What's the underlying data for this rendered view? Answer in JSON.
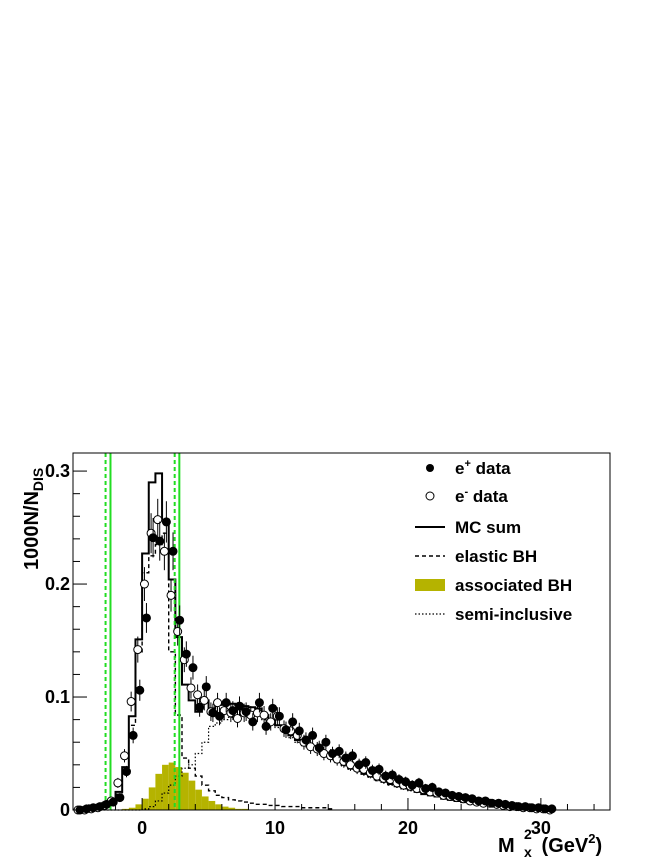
{
  "chart_data": {
    "type": "histogram",
    "title": "",
    "xlabel": "M_x^2 (GeV^2)",
    "xlabel_parts": {
      "main": "M",
      "sup": "2",
      "sub": "x",
      "unit_open": " (GeV",
      "unit_sup": "2",
      "unit_close": ")"
    },
    "ylabel": "1000N/N_DIS",
    "ylabel_parts": {
      "main": "1000N/N",
      "sub": "DIS"
    },
    "xlim": [
      -5.2,
      35.2
    ],
    "ylim": [
      0,
      0.316
    ],
    "x_ticks": [
      0,
      10,
      20,
      30
    ],
    "x_tick_labels": [
      "0",
      "10",
      "20",
      "30"
    ],
    "y_ticks": [
      0,
      0.1,
      0.2,
      0.3
    ],
    "y_tick_labels": [
      "0",
      "0.1",
      "0.2",
      "0.3"
    ],
    "bin_start": -5.0,
    "bin_width": 0.5,
    "colors": {
      "associated_fill": "#b5b300",
      "cut_lines": "#22dd22"
    },
    "legend": {
      "position": "top-right",
      "entries": [
        {
          "label_main": "e",
          "label_sup": "+",
          "label_rest": " data",
          "marker": "filled-circle"
        },
        {
          "label_main": "e",
          "label_sup": "-",
          "label_rest": " data",
          "marker": "open-circle"
        },
        {
          "label": "MC sum",
          "marker": "solid-line"
        },
        {
          "label": "elastic BH",
          "marker": "dashed-line"
        },
        {
          "label": "associated BH",
          "marker": "filled-box"
        },
        {
          "label": "semi-inclusive",
          "marker": "dotted-line"
        }
      ]
    },
    "cut_lines": {
      "solid": [
        -2.38,
        2.8
      ],
      "dotted": [
        -2.75,
        2.45
      ]
    },
    "series": [
      {
        "name": "e+ data",
        "style": "points-filled",
        "values": [
          0,
          0.001,
          0.002,
          0.003,
          0.005,
          0.007,
          0.011,
          0.034,
          0.066,
          0.106,
          0.17,
          0.241,
          0.238,
          0.255,
          0.229,
          0.168,
          0.138,
          0.126,
          0.091,
          0.109,
          0.086,
          0.083,
          0.095,
          0.088,
          0.092,
          0.087,
          0.078,
          0.095,
          0.074,
          0.09,
          0.083,
          0.071,
          0.078,
          0.07,
          0.062,
          0.066,
          0.055,
          0.06,
          0.05,
          0.052,
          0.046,
          0.048,
          0.04,
          0.042,
          0.035,
          0.036,
          0.03,
          0.031,
          0.027,
          0.025,
          0.022,
          0.024,
          0.019,
          0.02,
          0.016,
          0.015,
          0.013,
          0.012,
          0.011,
          0.01,
          0.008,
          0.008,
          0.006,
          0.006,
          0.005,
          0.004,
          0.003,
          0.003,
          0.002,
          0.002,
          0.001,
          0.001
        ]
      },
      {
        "name": "e- data",
        "style": "points-open",
        "values": [
          0,
          0,
          0.001,
          0.002,
          0.004,
          0.008,
          0.024,
          0.048,
          0.096,
          0.142,
          0.2,
          0.245,
          0.257,
          0.229,
          0.19,
          0.158,
          0.133,
          0.108,
          0.102,
          0.097,
          0.087,
          0.095,
          0.088,
          0.086,
          0.081,
          0.086,
          0.084,
          0.086,
          0.084,
          0.078,
          0.083,
          0.072,
          0.07,
          0.066,
          0.06,
          0.056,
          0.054,
          0.05,
          0.048,
          0.045,
          0.043,
          0.04,
          0.037,
          0.036,
          0.033,
          0.03,
          0.028,
          0.027,
          0.024,
          0.022,
          0.021,
          0.019,
          0.018,
          0.016,
          0.015,
          0.013,
          0.012,
          0.011,
          0.01,
          0.008,
          0.007,
          0.006,
          0.006,
          0.005,
          0.004,
          0.003,
          0.003,
          0.002,
          0.002,
          0.001,
          0.001,
          0.0
        ]
      },
      {
        "name": "MC sum",
        "style": "solid",
        "values": [
          0,
          0,
          0.001,
          0.002,
          0.004,
          0.008,
          0.016,
          0.038,
          0.083,
          0.151,
          0.227,
          0.29,
          0.298,
          0.257,
          0.204,
          0.153,
          0.111,
          0.097,
          0.087,
          0.097,
          0.09,
          0.093,
          0.095,
          0.094,
          0.093,
          0.092,
          0.091,
          0.09,
          0.084,
          0.08,
          0.075,
          0.072,
          0.066,
          0.062,
          0.058,
          0.055,
          0.052,
          0.049,
          0.046,
          0.043,
          0.04,
          0.037,
          0.035,
          0.032,
          0.03,
          0.027,
          0.025,
          0.023,
          0.021,
          0.019,
          0.018,
          0.016,
          0.014,
          0.013,
          0.012,
          0.01,
          0.009,
          0.008,
          0.007,
          0.006,
          0.005,
          0.005,
          0.004,
          0.003,
          0.003,
          0.002,
          0.002,
          0.001,
          0.001,
          0.001,
          0,
          0
        ]
      },
      {
        "name": "elastic BH",
        "style": "dashed",
        "values": [
          0,
          0,
          0.001,
          0.002,
          0.004,
          0.007,
          0.014,
          0.033,
          0.075,
          0.14,
          0.21,
          0.225,
          0.235,
          0.245,
          0.14,
          0.084,
          0.046,
          0.037,
          0.03,
          0.022,
          0.017,
          0.013,
          0.011,
          0.009,
          0.008,
          0.007,
          0.006,
          0.005,
          0.005,
          0.004,
          0.004,
          0.003,
          0.003,
          0.003,
          0.002,
          0.002,
          0.002,
          0.002,
          0.001
        ]
      },
      {
        "name": "associated BH",
        "style": "filled",
        "values": [
          0,
          0,
          0,
          0,
          0,
          0,
          0,
          0.001,
          0.002,
          0.005,
          0.01,
          0.02,
          0.032,
          0.04,
          0.042,
          0.038,
          0.033,
          0.026,
          0.018,
          0.012,
          0.008,
          0.005,
          0.003,
          0.002,
          0.001,
          0.001
        ]
      },
      {
        "name": "semi-inclusive",
        "style": "dotted",
        "values": [
          0,
          0,
          0,
          0,
          0,
          0,
          0,
          0,
          0,
          0,
          0.001,
          0.003,
          0.008,
          0.015,
          0.022,
          0.03,
          0.037,
          0.04,
          0.05,
          0.06,
          0.074,
          0.077,
          0.08,
          0.082,
          0.084,
          0.085,
          0.085,
          0.084,
          0.08,
          0.077,
          0.073,
          0.07,
          0.064,
          0.06,
          0.057,
          0.054,
          0.051,
          0.048,
          0.045,
          0.042,
          0.039,
          0.036,
          0.034,
          0.031,
          0.029,
          0.026,
          0.024,
          0.022,
          0.02,
          0.019,
          0.017,
          0.016,
          0.014,
          0.013,
          0.012,
          0.01,
          0.009,
          0.008,
          0.007,
          0.006,
          0.005,
          0.005,
          0.004,
          0.003,
          0.003,
          0.002,
          0.002,
          0.001,
          0.001,
          0.001,
          0,
          0
        ]
      }
    ]
  }
}
